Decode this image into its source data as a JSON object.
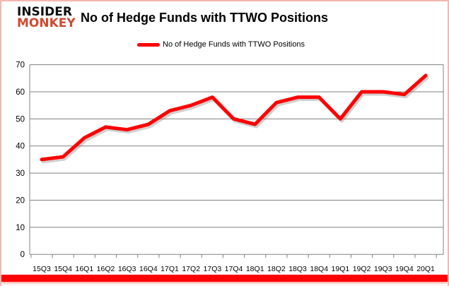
{
  "header": {
    "logo_line1": "INSIDER",
    "logo_line2": "MONKEY",
    "title": "No of Hedge Funds with TTWO Positions"
  },
  "legend": {
    "label": "No of Hedge Funds with TTWO Positions"
  },
  "colors": {
    "line_red": "#fe0000",
    "logo_red": "#cf4a31",
    "grid_gray": "#808080",
    "border_pink": "#f3b7b1"
  },
  "chart_data": {
    "type": "line",
    "title": "No of Hedge Funds with TTWO Positions",
    "categories": [
      "15Q3",
      "15Q4",
      "16Q1",
      "16Q2",
      "16Q3",
      "16Q4",
      "17Q1",
      "17Q2",
      "17Q3",
      "17Q4",
      "18Q1",
      "18Q2",
      "18Q3",
      "18Q4",
      "19Q1",
      "19Q2",
      "19Q3",
      "19Q4",
      "20Q1"
    ],
    "series": [
      {
        "name": "No of Hedge Funds with TTWO Positions",
        "color": "#fe0000",
        "values": [
          35,
          36,
          43,
          47,
          46,
          48,
          53,
          55,
          58,
          50,
          48,
          56,
          58,
          58,
          50,
          60,
          60,
          59,
          66
        ]
      }
    ],
    "ylim": [
      0,
      70
    ],
    "ytick_step": 10,
    "yticks": [
      0,
      10,
      20,
      30,
      40,
      50,
      60,
      70
    ],
    "grid": true,
    "legend_position": "top-center"
  }
}
